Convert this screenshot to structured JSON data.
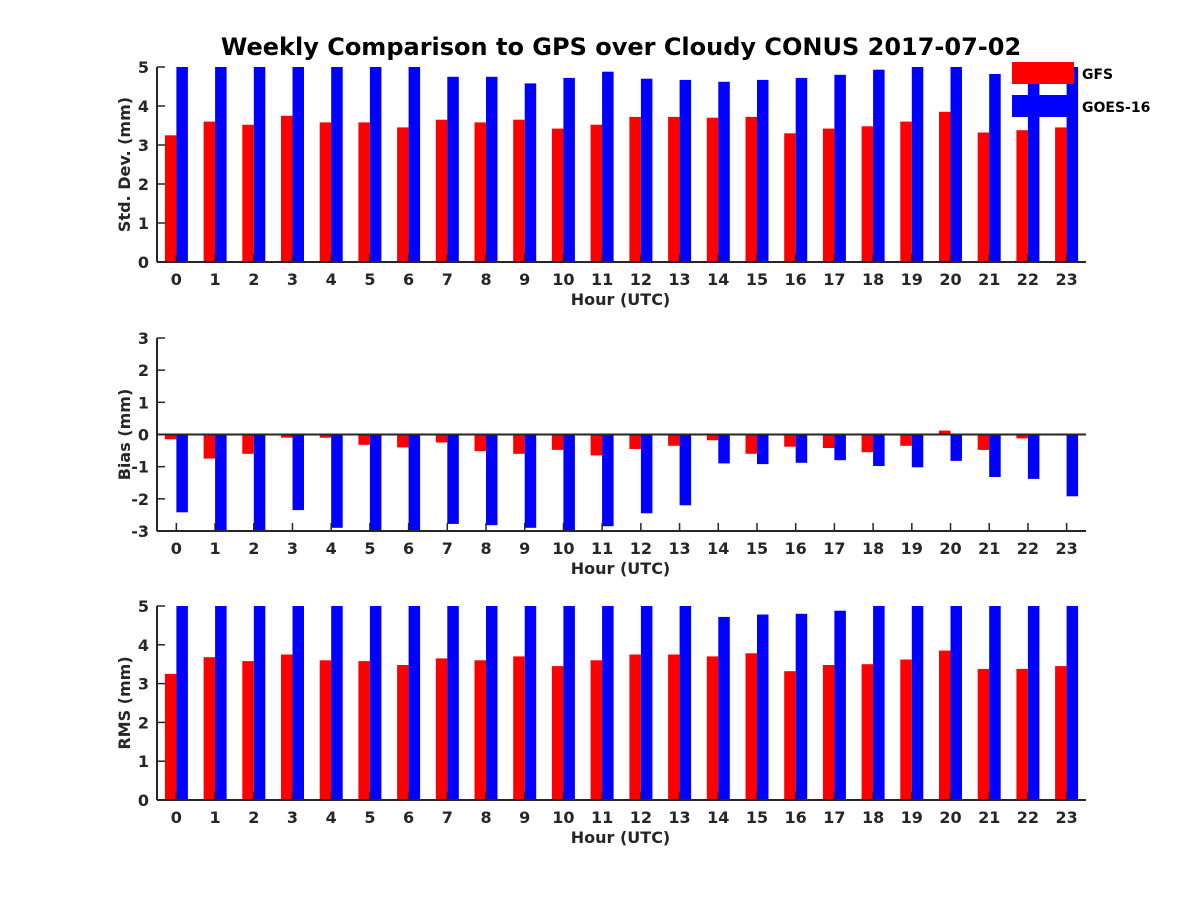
{
  "chart_data": {
    "type": "bar",
    "title": "Weekly Comparison to GPS over Cloudy CONUS 2017-07-02",
    "categories": [
      "0",
      "1",
      "2",
      "3",
      "4",
      "5",
      "6",
      "7",
      "8",
      "9",
      "10",
      "11",
      "12",
      "13",
      "14",
      "15",
      "16",
      "17",
      "18",
      "19",
      "20",
      "21",
      "22",
      "23"
    ],
    "legend": {
      "position": "top-right outside",
      "entries": [
        {
          "name": "GFS",
          "color": "#ff0000"
        },
        {
          "name": "GOES-16",
          "color": "#0000ff"
        }
      ]
    },
    "panels": [
      {
        "ylabel": "Std. Dev. (mm)",
        "xlabel": "Hour (UTC)",
        "ylim": [
          0,
          5
        ],
        "yticks": [
          "0",
          "1",
          "2",
          "3",
          "4",
          "5"
        ],
        "series": [
          {
            "name": "GFS",
            "color": "#ff0000",
            "values": [
              3.25,
              3.6,
              3.52,
              3.75,
              3.58,
              3.58,
              3.45,
              3.65,
              3.58,
              3.65,
              3.42,
              3.52,
              3.72,
              3.72,
              3.7,
              3.72,
              3.3,
              3.42,
              3.48,
              3.6,
              3.85,
              3.32,
              3.38,
              3.45
            ]
          },
          {
            "name": "GOES-16",
            "color": "#0000ff",
            "values": [
              5,
              5,
              5,
              5,
              5,
              5,
              5,
              4.75,
              4.75,
              4.58,
              4.72,
              4.88,
              4.7,
              4.67,
              4.62,
              4.67,
              4.72,
              4.8,
              4.93,
              5,
              5,
              4.82,
              5,
              5
            ]
          }
        ]
      },
      {
        "ylabel": "Bias (mm)",
        "xlabel": "Hour (UTC)",
        "ylim": [
          -3,
          3
        ],
        "yticks": [
          "-3",
          "-2",
          "-1",
          "0",
          "1",
          "2",
          "3"
        ],
        "zero_line": true,
        "series": [
          {
            "name": "GFS",
            "color": "#ff0000",
            "values": [
              -0.15,
              -0.75,
              -0.6,
              -0.1,
              -0.1,
              -0.32,
              -0.4,
              -0.25,
              -0.52,
              -0.6,
              -0.48,
              -0.65,
              -0.45,
              -0.35,
              -0.18,
              -0.6,
              -0.38,
              -0.42,
              -0.55,
              -0.35,
              0.12,
              -0.48,
              -0.12,
              0.02
            ]
          },
          {
            "name": "GOES-16",
            "color": "#0000ff",
            "values": [
              -2.42,
              -3,
              -3,
              -2.35,
              -2.9,
              -3,
              -3,
              -2.78,
              -2.82,
              -2.9,
              -3,
              -2.85,
              -2.45,
              -2.2,
              -0.9,
              -0.92,
              -0.88,
              -0.8,
              -0.98,
              -1.02,
              -0.82,
              -1.32,
              -1.38,
              -1.92
            ]
          }
        ]
      },
      {
        "ylabel": "RMS (mm)",
        "xlabel": "Hour (UTC)",
        "ylim": [
          0,
          5
        ],
        "yticks": [
          "0",
          "1",
          "2",
          "3",
          "4",
          "5"
        ],
        "series": [
          {
            "name": "GFS",
            "color": "#ff0000",
            "values": [
              3.25,
              3.68,
              3.58,
              3.75,
              3.6,
              3.58,
              3.48,
              3.65,
              3.6,
              3.7,
              3.45,
              3.6,
              3.75,
              3.75,
              3.7,
              3.78,
              3.32,
              3.48,
              3.5,
              3.62,
              3.85,
              3.38,
              3.38,
              3.45
            ]
          },
          {
            "name": "GOES-16",
            "color": "#0000ff",
            "values": [
              5,
              5,
              5,
              5,
              5,
              5,
              5,
              5,
              5,
              5,
              5,
              5,
              5,
              5,
              4.72,
              4.78,
              4.8,
              4.88,
              5,
              5,
              5,
              5,
              5,
              5
            ]
          }
        ]
      }
    ]
  }
}
